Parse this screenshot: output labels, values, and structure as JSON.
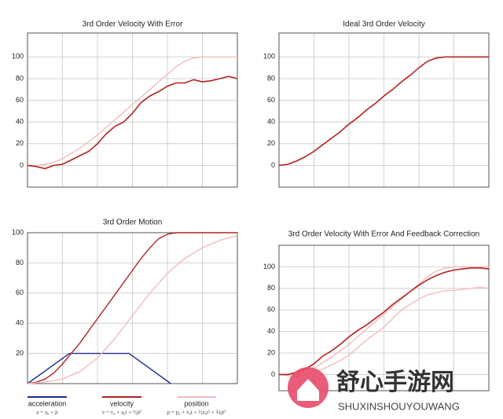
{
  "chart_data": [
    {
      "type": "line",
      "title": "3rd Order Velocity With Error",
      "x": [
        0,
        0.25,
        0.5,
        0.75,
        1,
        1.25,
        1.5,
        1.75,
        2,
        2.25,
        2.5,
        2.75,
        3,
        3.25,
        3.5,
        3.75,
        4,
        4.25,
        4.5,
        4.75,
        5,
        5.25,
        5.5,
        5.75,
        6
      ],
      "xlim": [
        0,
        6
      ],
      "xticks": [
        0,
        1,
        2,
        3,
        4,
        5,
        6
      ],
      "xtick_labels": false,
      "ylim": [
        -20,
        122
      ],
      "yticks": [
        0,
        20,
        40,
        60,
        80,
        100
      ],
      "grid": true,
      "series": [
        {
          "color": "#f2bcbc",
          "values": [
            0,
            0,
            1,
            3,
            6,
            11,
            16,
            22,
            28,
            35,
            42,
            49,
            56,
            63,
            70,
            77,
            84,
            91,
            96,
            99,
            100,
            100,
            100,
            100,
            100
          ]
        },
        {
          "color": "#b22222",
          "values": [
            0,
            -1,
            -3,
            0,
            1,
            5,
            9,
            13,
            20,
            29,
            36,
            40,
            48,
            58,
            64,
            68,
            73,
            76,
            76,
            79,
            77,
            78,
            80,
            82,
            80
          ]
        }
      ]
    },
    {
      "type": "line",
      "title": "Ideal 3rd Order Velocity",
      "x": [
        0,
        0.25,
        0.5,
        0.75,
        1,
        1.25,
        1.5,
        1.75,
        2,
        2.25,
        2.5,
        2.75,
        3,
        3.25,
        3.5,
        3.75,
        4,
        4.25,
        4.5,
        4.75,
        5,
        5.25,
        5.5,
        5.75,
        6
      ],
      "xlim": [
        0,
        6
      ],
      "xticks": [
        0,
        1,
        2,
        3,
        4,
        5,
        6
      ],
      "xtick_labels": false,
      "ylim": [
        -20,
        122
      ],
      "yticks": [
        0,
        20,
        40,
        60,
        80,
        100
      ],
      "grid": true,
      "series": [
        {
          "color": "#b22222",
          "values": [
            0,
            1,
            4,
            8,
            13,
            19,
            25,
            31,
            38,
            44,
            51,
            57,
            64,
            70,
            77,
            83,
            90,
            96,
            99,
            100,
            100,
            100,
            100,
            100,
            100
          ]
        }
      ]
    },
    {
      "type": "line",
      "title": "3rd Order Motion",
      "x": [
        0,
        0.25,
        0.5,
        0.75,
        1,
        1.25,
        1.5,
        1.75,
        2,
        2.25,
        2.5,
        2.75,
        3,
        3.25,
        3.5,
        3.75,
        4,
        4.25,
        4.5,
        4.75,
        5,
        5.25,
        5.5,
        5.75,
        6
      ],
      "xlim": [
        0,
        6
      ],
      "xticks": [
        0,
        1,
        2,
        3,
        4,
        5,
        6
      ],
      "xtick_labels": false,
      "ylim": [
        0,
        100
      ],
      "yticks": [
        20,
        40,
        60,
        80,
        100
      ],
      "grid": true,
      "series": [
        {
          "name": "acceleration",
          "formula": "a = a₀ + jt",
          "color": "#1f2f8f",
          "x": [
            0,
            1.2,
            2.9,
            4.1
          ],
          "values": [
            0,
            20,
            20,
            0
          ]
        },
        {
          "name": "velocity",
          "formula": "v = v₀ + a₀t + ½jt²",
          "color": "#b22222",
          "values": [
            0,
            1,
            3,
            7,
            13,
            20,
            27,
            35,
            43,
            51,
            59,
            67,
            75,
            83,
            90,
            96,
            99,
            100,
            100,
            100,
            100,
            100,
            100,
            100,
            100
          ]
        },
        {
          "name": "position",
          "formula": "p = p₀ + v₀t + ½a₀t² + ⅙jt³",
          "color": "#f2bcbc",
          "x": [
            0,
            0.5,
            1,
            1.5,
            2,
            2.5,
            3,
            3.5,
            4,
            4.5,
            5,
            5.5,
            6
          ],
          "values": [
            0,
            1,
            3,
            8,
            17,
            30,
            45,
            60,
            73,
            83,
            90,
            95,
            98
          ]
        }
      ]
    },
    {
      "type": "line",
      "title": "3rd Order Velocity With Error And Feedback Correction",
      "x": [
        0,
        0.25,
        0.5,
        0.75,
        1,
        1.25,
        1.5,
        1.75,
        2,
        2.25,
        2.5,
        2.75,
        3,
        3.25,
        3.5,
        3.75,
        4,
        4.25,
        4.5,
        4.75,
        5,
        5.25,
        5.5,
        5.75,
        6
      ],
      "xlim": [
        0,
        6
      ],
      "xticks": [
        0,
        1,
        2,
        3,
        4,
        5,
        6
      ],
      "xtick_labels": false,
      "ylim": [
        -15,
        120
      ],
      "yticks": [
        0,
        20,
        40,
        60,
        80,
        100
      ],
      "grid": true,
      "series": [
        {
          "color": "#f2bcbc",
          "values": [
            0,
            0,
            1,
            3,
            6,
            11,
            16,
            22,
            28,
            35,
            42,
            49,
            56,
            63,
            70,
            77,
            84,
            91,
            96,
            99,
            100,
            100,
            100,
            100,
            100
          ]
        },
        {
          "color": "#f2bcbc",
          "values": [
            0,
            -1,
            -2,
            0,
            2,
            5,
            9,
            13,
            18,
            25,
            32,
            38,
            44,
            52,
            60,
            65,
            70,
            74,
            76,
            78,
            78,
            79,
            80,
            81,
            80
          ]
        },
        {
          "color": "#b22222",
          "values": [
            0,
            0,
            2,
            5,
            10,
            17,
            22,
            28,
            35,
            41,
            46,
            52,
            58,
            65,
            71,
            77,
            83,
            88,
            92,
            95,
            97,
            98,
            99,
            99,
            98
          ]
        }
      ]
    }
  ],
  "watermark": {
    "name": "舒心手游网",
    "domain": "SHUXINSHOUYOUWANG"
  }
}
